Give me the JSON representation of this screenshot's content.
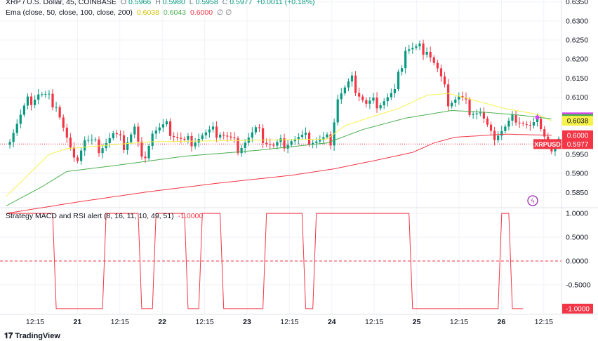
{
  "header": {
    "symbol": "XRP / U.S. Dollar, 45, COINBASE",
    "o_label": "O",
    "o": "0.5966",
    "h_label": "H",
    "h": "0.5980",
    "l_label": "L",
    "l": "0.5958",
    "c_label": "C",
    "c": "0.5977",
    "change": "+0.0011 (+0.18%)",
    "ema_title": "Ema (close, 50, close, 100, close, 200)",
    "ema_50": "0.6038",
    "ema_100": "0.6043",
    "ema_200": "0.6000",
    "oscillator_title": "Strategy MACD and RSI alert (8, 16, 11, 10, 49, 51)",
    "oscillator_value": "-1.0000"
  },
  "branding": {
    "logo_text": "TradingView"
  },
  "colors": {
    "bull": "#089981",
    "bear": "#f23645",
    "ema50": "#f7f24a",
    "ema100": "#4caf50",
    "ema200": "#f23645",
    "osc": "#f23645",
    "alert_dot": "#e040fb",
    "grid": "#f0f3fa"
  },
  "chart_data": [
    {
      "type": "candlestick",
      "title": "XRP / U.S. Dollar, 45, COINBASE",
      "ylim": [
        0.581,
        0.6355
      ],
      "y_ticks": [
        "0.6350",
        "0.6300",
        "0.6250",
        "0.6200",
        "0.6150",
        "0.6100",
        "0.5950",
        "0.5900",
        "0.5850"
      ],
      "x_ticks": [
        "12:15",
        "21",
        "12:15",
        "22",
        "12:15",
        "23",
        "12:15",
        "24",
        "12:15",
        "25",
        "12:15",
        "26",
        "12:15"
      ],
      "price_labels": [
        {
          "text": "0.6047",
          "value": 0.6047,
          "color": "#e040fb"
        },
        {
          "text": "0.6043",
          "value": 0.6043,
          "color": "#4caf50"
        },
        {
          "text": "0.6038",
          "value": 0.6038,
          "color": "#f7f24a"
        },
        {
          "text": "0.6000",
          "value": 0.6,
          "color": "#f23645"
        },
        {
          "text": "XRPUSD",
          "value": 0.5977,
          "color": "#f23645",
          "wide": true,
          "second": "0.5977"
        }
      ],
      "last_price": 0.5977,
      "anchors": [
        [
          0,
          0.5975
        ],
        [
          6,
          0.6085
        ],
        [
          9,
          0.611
        ],
        [
          14,
          0.6085
        ],
        [
          16,
          0.602
        ],
        [
          19,
          0.5925
        ],
        [
          22,
          0.599
        ],
        [
          26,
          0.597
        ],
        [
          30,
          0.6
        ],
        [
          33,
          0.5975
        ],
        [
          36,
          0.602
        ],
        [
          38,
          0.593
        ],
        [
          41,
          0.601
        ],
        [
          45,
          0.602
        ],
        [
          50,
          0.598
        ],
        [
          55,
          0.6
        ],
        [
          60,
          0.601
        ],
        [
          65,
          0.597
        ],
        [
          70,
          0.601
        ],
        [
          75,
          0.597
        ],
        [
          80,
          0.599
        ],
        [
          85,
          0.599
        ],
        [
          88,
          0.5985
        ],
        [
          91,
          0.599
        ],
        [
          93,
          0.61
        ],
        [
          97,
          0.614
        ],
        [
          101,
          0.608
        ],
        [
          105,
          0.609
        ],
        [
          109,
          0.611
        ],
        [
          112,
          0.623
        ],
        [
          115,
          0.6225
        ],
        [
          118,
          0.623
        ],
        [
          121,
          0.617
        ],
        [
          124,
          0.609
        ],
        [
          127,
          0.61
        ],
        [
          130,
          0.607
        ],
        [
          133,
          0.606
        ],
        [
          136,
          0.5995
        ],
        [
          140,
          0.602
        ],
        [
          143,
          0.605
        ],
        [
          147,
          0.602
        ],
        [
          150,
          0.603
        ],
        [
          153,
          0.5955
        ],
        [
          155,
          0.5977
        ]
      ],
      "ema50": [
        [
          0,
          0.584
        ],
        [
          12,
          0.595
        ],
        [
          17,
          0.5965
        ],
        [
          40,
          0.5983
        ],
        [
          70,
          0.5987
        ],
        [
          90,
          0.599
        ],
        [
          95,
          0.6025
        ],
        [
          103,
          0.605
        ],
        [
          110,
          0.607
        ],
        [
          118,
          0.6105
        ],
        [
          124,
          0.611
        ],
        [
          130,
          0.6095
        ],
        [
          140,
          0.607
        ],
        [
          149,
          0.6055
        ],
        [
          153,
          0.6038
        ]
      ],
      "ema100": [
        [
          0,
          0.5815
        ],
        [
          10,
          0.5865
        ],
        [
          17,
          0.5905
        ],
        [
          30,
          0.592
        ],
        [
          50,
          0.5945
        ],
        [
          70,
          0.596
        ],
        [
          90,
          0.598
        ],
        [
          100,
          0.6015
        ],
        [
          112,
          0.6045
        ],
        [
          125,
          0.6065
        ],
        [
          135,
          0.606
        ],
        [
          145,
          0.6052
        ],
        [
          153,
          0.6043
        ]
      ],
      "ema200": [
        [
          0,
          0.5795
        ],
        [
          20,
          0.5825
        ],
        [
          40,
          0.5852
        ],
        [
          60,
          0.5875
        ],
        [
          80,
          0.5895
        ],
        [
          92,
          0.5912
        ],
        [
          104,
          0.5935
        ],
        [
          114,
          0.5955
        ],
        [
          120,
          0.598
        ],
        [
          126,
          0.5995
        ],
        [
          140,
          0.6003
        ],
        [
          153,
          0.6
        ]
      ]
    },
    {
      "type": "line",
      "title": "Strategy MACD and RSI alert (8, 16, 11, 10, 49, 51)",
      "ylim": [
        -1.12,
        1.12
      ],
      "y_ticks": [
        "1.0000",
        "0.5000",
        "0.0000",
        "-0.5000"
      ],
      "last_value_label": "-1.0000",
      "zero_line": true,
      "segments": [
        [
          0,
          1
        ],
        [
          13,
          1
        ],
        [
          14,
          -1
        ],
        [
          27,
          -1
        ],
        [
          28,
          1
        ],
        [
          37,
          1
        ],
        [
          38,
          -1
        ],
        [
          41,
          -1
        ],
        [
          42,
          1
        ],
        [
          50,
          1
        ],
        [
          51,
          -1
        ],
        [
          54,
          -1
        ],
        [
          55,
          1
        ],
        [
          60,
          1
        ],
        [
          61,
          -1
        ],
        [
          72,
          -1
        ],
        [
          73,
          1
        ],
        [
          83,
          1
        ],
        [
          84,
          -1
        ],
        [
          86,
          -1
        ],
        [
          87,
          1
        ],
        [
          113,
          1
        ],
        [
          114,
          -1
        ],
        [
          138,
          -1
        ],
        [
          139,
          1
        ],
        [
          141,
          1
        ],
        [
          142,
          -1
        ],
        [
          145,
          -1
        ]
      ]
    }
  ]
}
